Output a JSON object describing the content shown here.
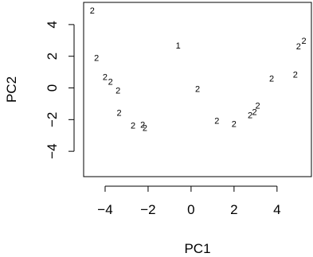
{
  "chart_data": {
    "type": "scatter",
    "xlabel": "PC1",
    "ylabel": "PC2",
    "xlim": [
      -5.0,
      5.6
    ],
    "ylim": [
      -5.6,
      5.4
    ],
    "x_ticks": [
      -4,
      -2,
      0,
      2,
      4
    ],
    "y_ticks": [
      -4,
      -2,
      0,
      2,
      4
    ],
    "x_tick_labels": [
      "−4",
      "−2",
      "0",
      "2",
      "4"
    ],
    "y_tick_labels": [
      "−4",
      "−2",
      "0",
      "2",
      "4"
    ],
    "grid": false,
    "marker": "text label",
    "points": [
      {
        "x": -4.6,
        "y": 4.9,
        "label": "2"
      },
      {
        "x": -4.4,
        "y": 1.9,
        "label": "2"
      },
      {
        "x": -4.0,
        "y": 0.7,
        "label": "2"
      },
      {
        "x": -3.75,
        "y": 0.4,
        "label": "2"
      },
      {
        "x": -3.4,
        "y": -0.15,
        "label": "2"
      },
      {
        "x": -3.35,
        "y": -1.55,
        "label": "2"
      },
      {
        "x": -2.7,
        "y": -2.35,
        "label": "2"
      },
      {
        "x": -2.25,
        "y": -2.3,
        "label": "2"
      },
      {
        "x": -2.15,
        "y": -2.5,
        "label": "2"
      },
      {
        "x": -0.6,
        "y": 2.7,
        "label": "1"
      },
      {
        "x": 0.3,
        "y": -0.05,
        "label": "2"
      },
      {
        "x": 1.2,
        "y": -2.05,
        "label": "2"
      },
      {
        "x": 2.0,
        "y": -2.25,
        "label": "2"
      },
      {
        "x": 2.75,
        "y": -1.7,
        "label": "2"
      },
      {
        "x": 2.95,
        "y": -1.5,
        "label": "2"
      },
      {
        "x": 3.1,
        "y": -1.1,
        "label": "2"
      },
      {
        "x": 3.75,
        "y": 0.6,
        "label": "2"
      },
      {
        "x": 4.85,
        "y": 0.85,
        "label": "2"
      },
      {
        "x": 5.0,
        "y": 2.65,
        "label": "2"
      },
      {
        "x": 5.25,
        "y": 3.0,
        "label": "2"
      }
    ]
  }
}
